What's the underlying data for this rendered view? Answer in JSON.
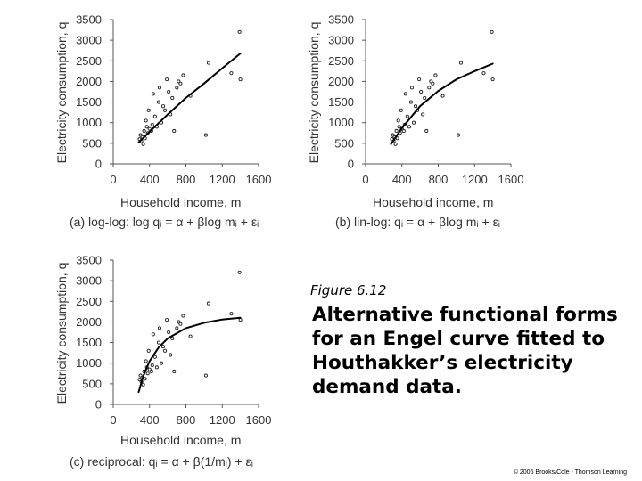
{
  "figure": {
    "number": "Figure 6.12",
    "title": "Alternative functional forms for an Engel curve fitted to Houthakker’s electricity demand data.",
    "copyright": "© 2006 Brooks/Cole - Thomson Learning"
  },
  "chart_data": [
    {
      "type": "scatter",
      "caption": "(a) log-log: log qᵢ = α + βlog mᵢ + εᵢ",
      "xlabel": "Household income, m",
      "ylabel": "Electricity consumption, q",
      "xlim": [
        0,
        1600
      ],
      "ylim": [
        0,
        3500
      ],
      "xticks": [
        0,
        400,
        800,
        1200,
        1600
      ],
      "yticks": [
        0,
        500,
        1000,
        1500,
        2000,
        2500,
        3000,
        3500
      ],
      "fit": "log-log",
      "fit_curve": {
        "x": [
          280,
          400,
          600,
          800,
          1000,
          1200,
          1400
        ],
        "y": [
          520,
          780,
          1200,
          1600,
          1950,
          2320,
          2680
        ]
      },
      "points": [
        {
          "x": 290,
          "y": 600
        },
        {
          "x": 300,
          "y": 700
        },
        {
          "x": 310,
          "y": 550
        },
        {
          "x": 320,
          "y": 650
        },
        {
          "x": 330,
          "y": 480
        },
        {
          "x": 340,
          "y": 800
        },
        {
          "x": 350,
          "y": 620
        },
        {
          "x": 360,
          "y": 1050
        },
        {
          "x": 370,
          "y": 900
        },
        {
          "x": 380,
          "y": 750
        },
        {
          "x": 390,
          "y": 1300
        },
        {
          "x": 400,
          "y": 850
        },
        {
          "x": 420,
          "y": 800
        },
        {
          "x": 430,
          "y": 950
        },
        {
          "x": 440,
          "y": 1700
        },
        {
          "x": 460,
          "y": 1150
        },
        {
          "x": 480,
          "y": 900
        },
        {
          "x": 500,
          "y": 1500
        },
        {
          "x": 510,
          "y": 1850
        },
        {
          "x": 530,
          "y": 1000
        },
        {
          "x": 550,
          "y": 1400
        },
        {
          "x": 570,
          "y": 1300
        },
        {
          "x": 590,
          "y": 2050
        },
        {
          "x": 610,
          "y": 1750
        },
        {
          "x": 630,
          "y": 1200
        },
        {
          "x": 650,
          "y": 1600
        },
        {
          "x": 670,
          "y": 800
        },
        {
          "x": 700,
          "y": 1850
        },
        {
          "x": 720,
          "y": 2000
        },
        {
          "x": 740,
          "y": 1950
        },
        {
          "x": 770,
          "y": 2150
        },
        {
          "x": 850,
          "y": 1650
        },
        {
          "x": 1020,
          "y": 700
        },
        {
          "x": 1050,
          "y": 2450
        },
        {
          "x": 1300,
          "y": 2200
        },
        {
          "x": 1390,
          "y": 3200
        },
        {
          "x": 1400,
          "y": 2050
        }
      ]
    },
    {
      "type": "scatter",
      "caption": "(b) lin-log: qᵢ = α + βlog mᵢ + εᵢ",
      "xlabel": "Household income, m",
      "ylabel": "Electricity consumption, q",
      "xlim": [
        0,
        1600
      ],
      "ylim": [
        0,
        3500
      ],
      "xticks": [
        0,
        400,
        800,
        1200,
        1600
      ],
      "yticks": [
        0,
        500,
        1000,
        1500,
        2000,
        2500,
        3000,
        3500
      ],
      "fit": "lin-log",
      "fit_curve": {
        "x": [
          280,
          400,
          600,
          800,
          1000,
          1200,
          1400
        ],
        "y": [
          480,
          870,
          1400,
          1770,
          2050,
          2250,
          2430
        ]
      },
      "points": [
        {
          "x": 290,
          "y": 600
        },
        {
          "x": 300,
          "y": 700
        },
        {
          "x": 310,
          "y": 550
        },
        {
          "x": 320,
          "y": 650
        },
        {
          "x": 330,
          "y": 480
        },
        {
          "x": 340,
          "y": 800
        },
        {
          "x": 350,
          "y": 620
        },
        {
          "x": 360,
          "y": 1050
        },
        {
          "x": 370,
          "y": 900
        },
        {
          "x": 380,
          "y": 750
        },
        {
          "x": 390,
          "y": 1300
        },
        {
          "x": 400,
          "y": 850
        },
        {
          "x": 420,
          "y": 800
        },
        {
          "x": 430,
          "y": 950
        },
        {
          "x": 440,
          "y": 1700
        },
        {
          "x": 460,
          "y": 1150
        },
        {
          "x": 480,
          "y": 900
        },
        {
          "x": 500,
          "y": 1500
        },
        {
          "x": 510,
          "y": 1850
        },
        {
          "x": 530,
          "y": 1000
        },
        {
          "x": 550,
          "y": 1400
        },
        {
          "x": 570,
          "y": 1300
        },
        {
          "x": 590,
          "y": 2050
        },
        {
          "x": 610,
          "y": 1750
        },
        {
          "x": 630,
          "y": 1200
        },
        {
          "x": 650,
          "y": 1600
        },
        {
          "x": 670,
          "y": 800
        },
        {
          "x": 700,
          "y": 1850
        },
        {
          "x": 720,
          "y": 2000
        },
        {
          "x": 740,
          "y": 1950
        },
        {
          "x": 770,
          "y": 2150
        },
        {
          "x": 850,
          "y": 1650
        },
        {
          "x": 1020,
          "y": 700
        },
        {
          "x": 1050,
          "y": 2450
        },
        {
          "x": 1300,
          "y": 2200
        },
        {
          "x": 1390,
          "y": 3200
        },
        {
          "x": 1400,
          "y": 2050
        }
      ]
    },
    {
      "type": "scatter",
      "caption": "(c) reciprocal: qᵢ = α + β(1/mᵢ) + εᵢ",
      "xlabel": "Household income, m",
      "ylabel": "Electricity consumption, q",
      "xlim": [
        0,
        1600
      ],
      "ylim": [
        0,
        3500
      ],
      "xticks": [
        0,
        400,
        800,
        1200,
        1600
      ],
      "yticks": [
        0,
        500,
        1000,
        1500,
        2000,
        2500,
        3000,
        3500
      ],
      "fit": "reciprocal",
      "fit_curve": {
        "x": [
          280,
          330,
          400,
          500,
          600,
          800,
          1000,
          1200,
          1400
        ],
        "y": [
          300,
          680,
          1050,
          1380,
          1600,
          1850,
          1980,
          2060,
          2100
        ]
      },
      "points": [
        {
          "x": 290,
          "y": 600
        },
        {
          "x": 300,
          "y": 700
        },
        {
          "x": 310,
          "y": 550
        },
        {
          "x": 320,
          "y": 650
        },
        {
          "x": 330,
          "y": 480
        },
        {
          "x": 340,
          "y": 800
        },
        {
          "x": 350,
          "y": 620
        },
        {
          "x": 360,
          "y": 1050
        },
        {
          "x": 370,
          "y": 900
        },
        {
          "x": 380,
          "y": 750
        },
        {
          "x": 390,
          "y": 1300
        },
        {
          "x": 400,
          "y": 850
        },
        {
          "x": 420,
          "y": 800
        },
        {
          "x": 430,
          "y": 950
        },
        {
          "x": 440,
          "y": 1700
        },
        {
          "x": 460,
          "y": 1150
        },
        {
          "x": 480,
          "y": 900
        },
        {
          "x": 500,
          "y": 1500
        },
        {
          "x": 510,
          "y": 1850
        },
        {
          "x": 530,
          "y": 1000
        },
        {
          "x": 550,
          "y": 1400
        },
        {
          "x": 570,
          "y": 1300
        },
        {
          "x": 590,
          "y": 2050
        },
        {
          "x": 610,
          "y": 1750
        },
        {
          "x": 630,
          "y": 1200
        },
        {
          "x": 650,
          "y": 1600
        },
        {
          "x": 670,
          "y": 800
        },
        {
          "x": 700,
          "y": 1850
        },
        {
          "x": 720,
          "y": 2000
        },
        {
          "x": 740,
          "y": 1950
        },
        {
          "x": 770,
          "y": 2150
        },
        {
          "x": 850,
          "y": 1650
        },
        {
          "x": 1020,
          "y": 700
        },
        {
          "x": 1050,
          "y": 2450
        },
        {
          "x": 1300,
          "y": 2200
        },
        {
          "x": 1390,
          "y": 3200
        },
        {
          "x": 1400,
          "y": 2050
        }
      ]
    }
  ]
}
